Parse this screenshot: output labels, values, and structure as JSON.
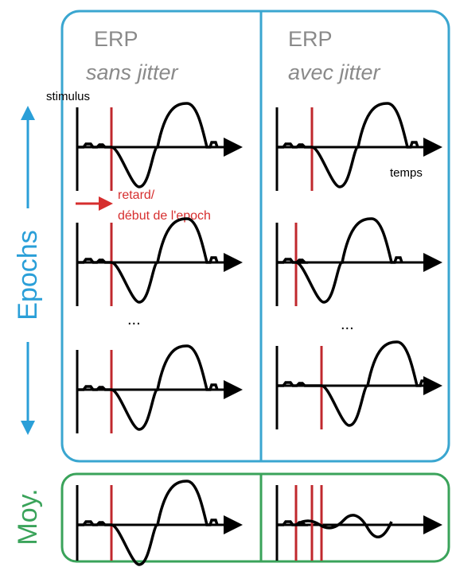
{
  "columns": [
    {
      "title": "ERP",
      "subtitle": "sans jitter"
    },
    {
      "title": "ERP",
      "subtitle": "avec jitter"
    }
  ],
  "labels": {
    "stimulus": "stimulus",
    "time": "temps",
    "delay_1": "retard/",
    "delay_2": "début de l'epoch",
    "ellipsis": "...",
    "epochs": "Epochs",
    "average": "Moy."
  }
}
